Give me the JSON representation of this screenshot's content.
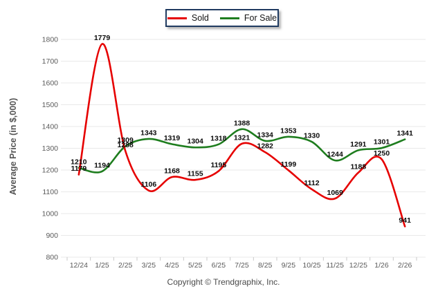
{
  "legend": {
    "items": [
      {
        "label": "Sold",
        "color": "#e60000"
      },
      {
        "label": "For Sale",
        "color": "#1e7d1e"
      }
    ]
  },
  "footer": {
    "copyright": "Copyright © Trendgraphix, Inc."
  },
  "chart_data": {
    "type": "line",
    "title": "",
    "xlabel": "",
    "ylabel": "Average Price (in $,000)",
    "categories": [
      "12/24",
      "1/25",
      "2/25",
      "3/25",
      "4/25",
      "5/25",
      "6/25",
      "7/25",
      "8/25",
      "9/25",
      "10/25",
      "11/25",
      "12/25",
      "1/26",
      "2/26"
    ],
    "series": [
      {
        "name": "Sold",
        "color": "#e60000",
        "values": [
          1179,
          1779,
          1288,
          1106,
          1168,
          1155,
          1195,
          1321,
          1282,
          1199,
          1112,
          1069,
          1188,
          1250,
          941
        ]
      },
      {
        "name": "For Sale",
        "color": "#1e7d1e",
        "values": [
          1210,
          1194,
          1309,
          1343,
          1319,
          1304,
          1318,
          1388,
          1334,
          1353,
          1330,
          1244,
          1291,
          1301,
          1341
        ]
      }
    ],
    "ylim": [
      800,
      1800
    ],
    "y_step": 100,
    "grid": true,
    "data_labels": true,
    "legend_position": "top-center",
    "grid_color": "#e9e9e9",
    "tick_color": "#c9c9c9",
    "axis_text_color": "#5a5a5a",
    "label_text_color": "#0a0a0a"
  }
}
